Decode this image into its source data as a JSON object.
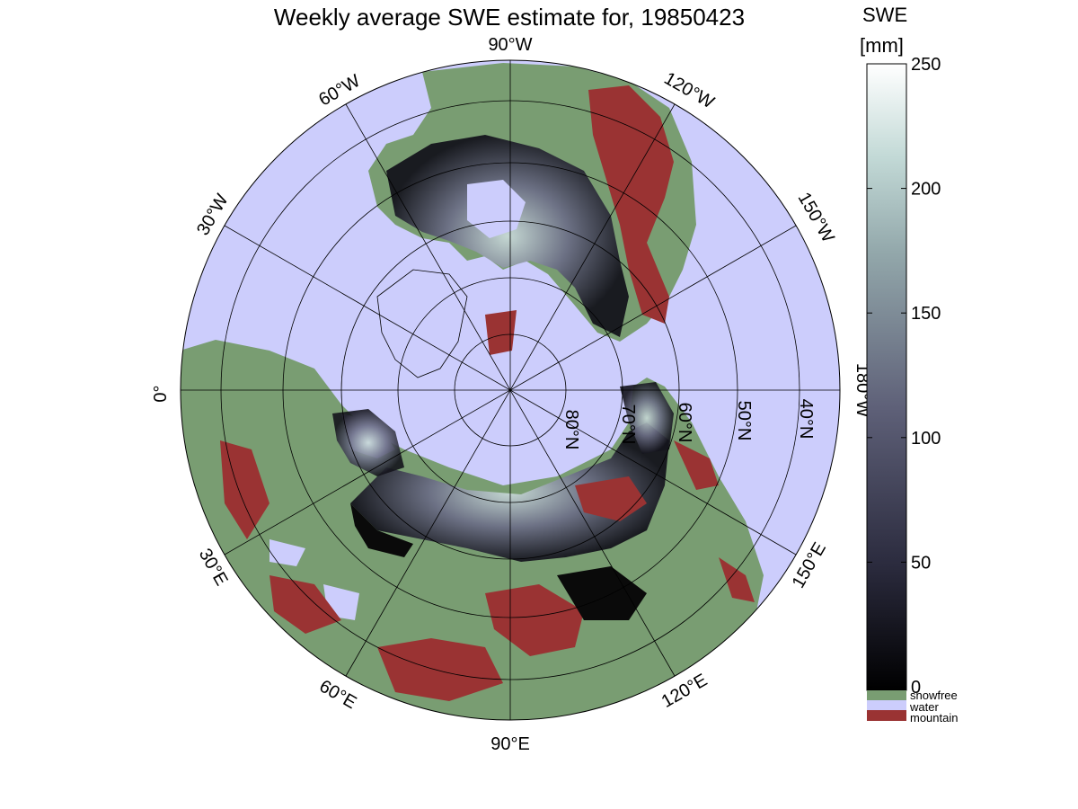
{
  "title": "Weekly average SWE estimate for, 19850423",
  "colorbar": {
    "title_line1": "SWE",
    "title_line2": "[mm]",
    "ticks": [
      0,
      50,
      100,
      150,
      200,
      250
    ],
    "categories": [
      {
        "label": "snowfree",
        "color": "#799d72"
      },
      {
        "label": "water",
        "color": "#cccdfc"
      },
      {
        "label": "mountain",
        "color": "#9a3333"
      }
    ]
  },
  "map": {
    "projection": "north polar stereographic",
    "longitude_labels": [
      "90°W",
      "60°W",
      "120°W",
      "30°W",
      "150°W",
      "0°",
      "180°W",
      "30°E",
      "150°E",
      "60°E",
      "120°E",
      "90°E"
    ],
    "latitude_labels": [
      "80°N",
      "70°N",
      "60°N",
      "50°N",
      "40°N"
    ],
    "colors": {
      "ocean": "#cccdfc",
      "land": "#799d72",
      "mountain": "#9a3333"
    }
  }
}
